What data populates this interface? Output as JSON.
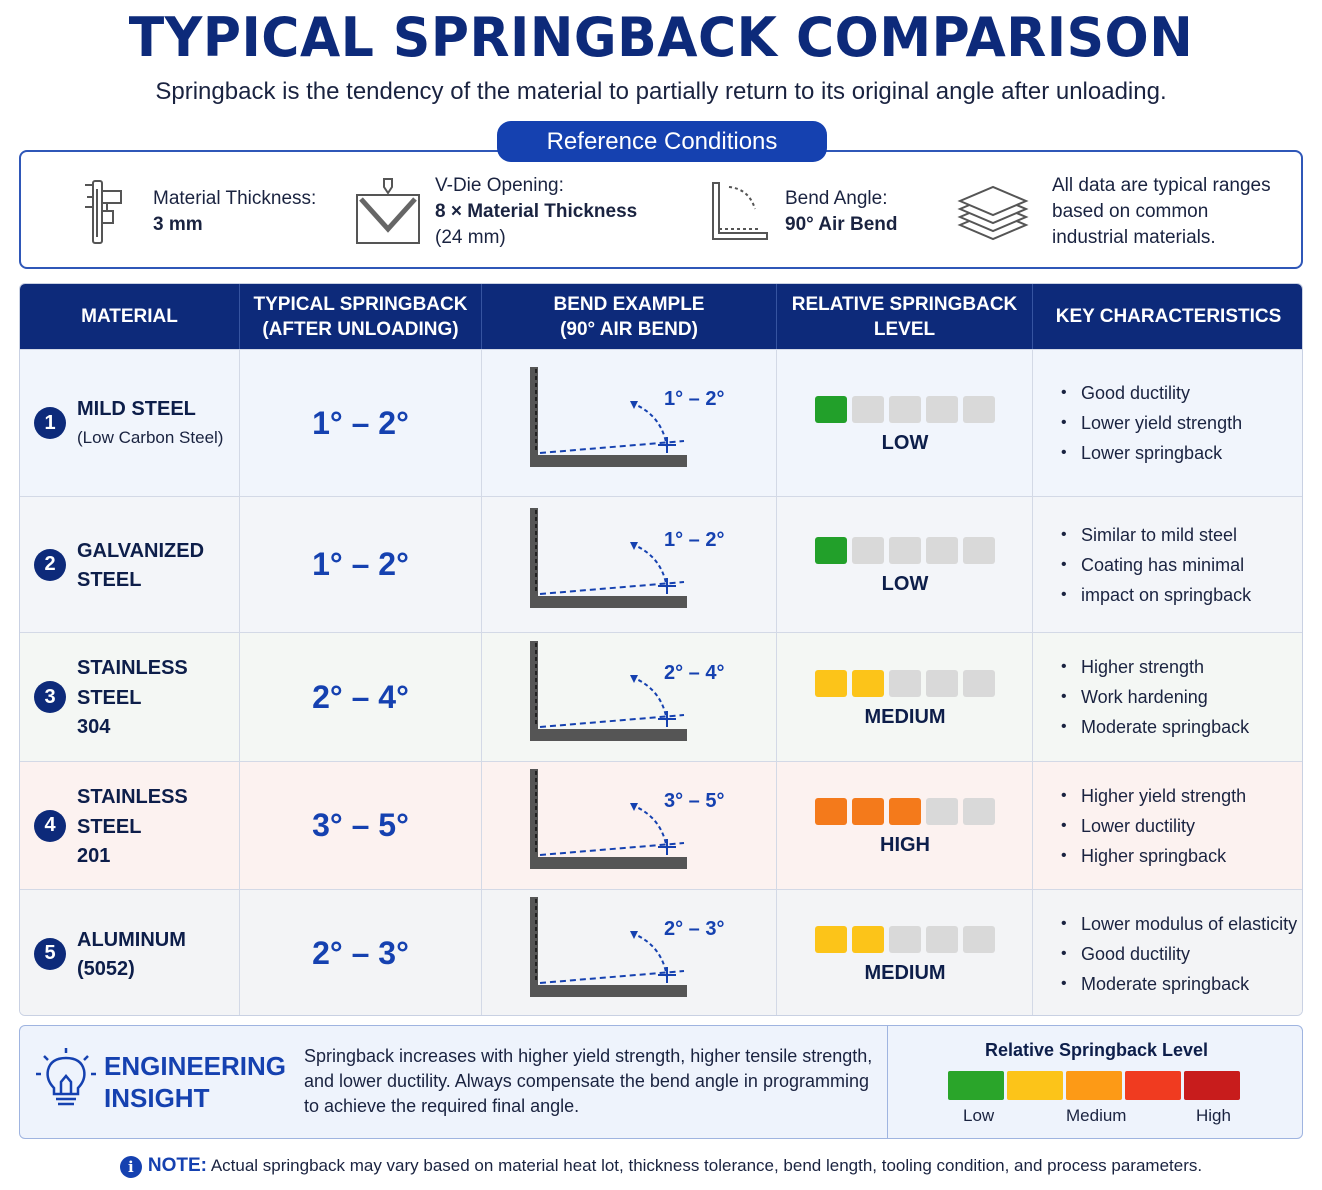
{
  "title": "TYPICAL SPRINGBACK COMPARISON",
  "subtitle": "Springback is the tendency of the material to partially return to its original angle after unloading.",
  "reference": {
    "label": "Reference Conditions",
    "items": [
      {
        "icon": "caliper-icon",
        "label": "Material Thickness:",
        "value": "3 mm"
      },
      {
        "icon": "v-die-icon",
        "label": "V-Die Opening:",
        "value": "8 × Material Thickness",
        "value2": "(24 mm)"
      },
      {
        "icon": "bend-angle-icon",
        "label": "Bend Angle:",
        "value": "90° Air Bend"
      },
      {
        "icon": "layers-icon",
        "text1": "All data are typical ranges",
        "text2": "based on common",
        "text3": "industrial materials."
      }
    ]
  },
  "table": {
    "headers": [
      {
        "line1": "MATERIAL",
        "line2": ""
      },
      {
        "line1": "TYPICAL SPRINGBACK",
        "line2": "(AFTER UNLOADING)"
      },
      {
        "line1": "BEND EXAMPLE",
        "line2": "(90° AIR BEND)"
      },
      {
        "line1": "RELATIVE SPRINGBACK",
        "line2": "LEVEL"
      },
      {
        "line1": "KEY CHARACTERISTICS",
        "line2": ""
      }
    ],
    "rows": [
      {
        "num": "1",
        "name": "MILD STEEL",
        "sub": "(Low Carbon Steel)",
        "springback": "1° – 2°",
        "bend_label": "1° – 2°",
        "level": "LOW",
        "level_filled": 1,
        "level_color": "#22a02a",
        "bg": "#f1f5fc",
        "chars": [
          "Good ductility",
          "Lower yield strength",
          "Lower springback"
        ]
      },
      {
        "num": "2",
        "name": "GALVANIZED",
        "sub": "STEEL",
        "springback": "1° – 2°",
        "bend_label": "1° – 2°",
        "level": "LOW",
        "level_filled": 1,
        "level_color": "#22a02a",
        "bg": "#f3f5f9",
        "chars": [
          "Similar to mild steel",
          "Coating has minimal",
          "impact on springback"
        ]
      },
      {
        "num": "3",
        "name": "STAINLESS STEEL",
        "sub": "304",
        "springback": "2° – 4°",
        "bend_label": "2° – 4°",
        "level": "MEDIUM",
        "level_filled": 2,
        "level_color": "#fcc419",
        "bg": "#f4f7f4",
        "chars": [
          "Higher strength",
          "Work hardening",
          "Moderate springback"
        ]
      },
      {
        "num": "4",
        "name": "STAINLESS STEEL",
        "sub": "201",
        "springback": "3° – 5°",
        "bend_label": "3° – 5°",
        "level": "HIGH",
        "level_filled": 3,
        "level_color": "#f47a1b",
        "bg": "#fcf2f0",
        "chars": [
          "Higher yield strength",
          "Lower ductility",
          "Higher springback"
        ]
      },
      {
        "num": "5",
        "name": "ALUMINUM",
        "sub": "(5052)",
        "springback": "2° – 3°",
        "bend_label": "2° – 3°",
        "level": "MEDIUM",
        "level_filled": 2,
        "level_color": "#fcc419",
        "bg": "#f3f4f6",
        "chars": [
          "Lower modulus of elasticity",
          "Good ductility",
          "Moderate springback"
        ]
      }
    ]
  },
  "insight": {
    "title1": "ENGINEERING",
    "title2": "INSIGHT",
    "text": "Springback increases with higher yield strength, higher tensile strength, and lower ductility. Always compensate the bend angle in programming to achieve the required final angle.",
    "legend": {
      "title": "Relative Springback Level",
      "colors": [
        "#2aa52a",
        "#fcc419",
        "#fd9a16",
        "#f03b20",
        "#c81c1c"
      ],
      "low": "Low",
      "medium": "Medium",
      "high": "High"
    }
  },
  "note": {
    "label": "NOTE:",
    "text": "Actual springback may vary based on material heat lot, thickness tolerance, bend length, tooling condition, and process parameters."
  }
}
